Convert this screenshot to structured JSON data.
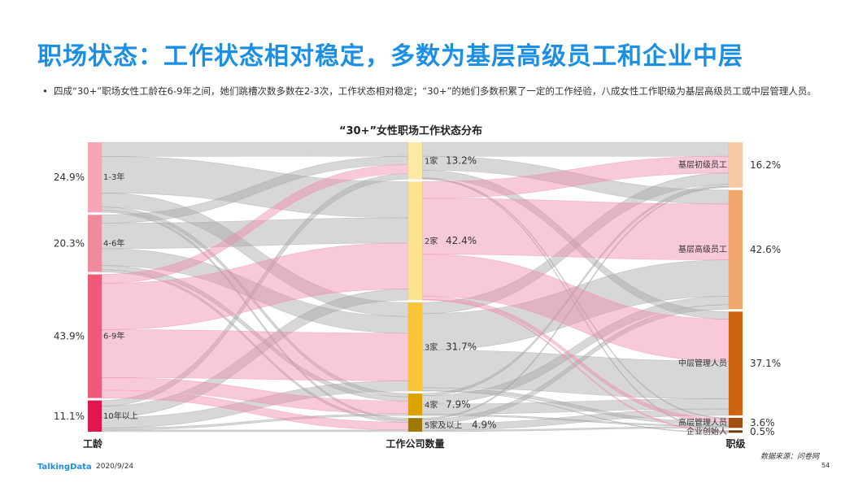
{
  "header": {
    "title": "职场状态：工作状态相对稳定，多数为基层高级员工和企业中层",
    "bullet": "四成“30+”职场女性工龄在6-9年之间，她们跳槽次数多数在2-3次，工作状态相对稳定；“30+”的她们多数积累了一定的工作经验，八成女性工作职级为基层高级员工或中层管理人员。"
  },
  "chart_data": {
    "type": "sankey",
    "title": "“30+”女性职场工作状态分布",
    "columns": [
      {
        "label": "工龄",
        "nodes": [
          {
            "name": "1-3年",
            "pct": "24.9%",
            "value": 24.9,
            "color": "#f4a6b7"
          },
          {
            "name": "4-6年",
            "pct": "20.3%",
            "value": 20.3,
            "color": "#ef8b9d"
          },
          {
            "name": "6-9年",
            "pct": "43.9%",
            "value": 43.9,
            "color": "#ee5a78"
          },
          {
            "name": "10年以上",
            "pct": "11.1%",
            "value": 11.1,
            "color": "#e0174f"
          }
        ]
      },
      {
        "label": "工作公司数量",
        "nodes": [
          {
            "name": "1家",
            "pct": "13.2%",
            "value": 13.2,
            "color": "#fde9a6"
          },
          {
            "name": "2家",
            "pct": "42.4%",
            "value": 42.4,
            "color": "#fde28e"
          },
          {
            "name": "3家",
            "pct": "31.7%",
            "value": 31.7,
            "color": "#f9c437"
          },
          {
            "name": "4家",
            "pct": "7.9%",
            "value": 7.9,
            "color": "#dca200"
          },
          {
            "name": "5家及以上",
            "pct": "4.9%",
            "value": 4.9,
            "color": "#a07a06"
          }
        ]
      },
      {
        "label": "职级",
        "nodes": [
          {
            "name": "基层初级员工",
            "pct": "16.2%",
            "value": 16.2,
            "color": "#f9c9a4"
          },
          {
            "name": "基层高级员工",
            "pct": "42.6%",
            "value": 42.6,
            "color": "#f1a66c"
          },
          {
            "name": "中层管理人员",
            "pct": "37.1%",
            "value": 37.1,
            "color": "#cf6410"
          },
          {
            "name": "高层管理人员",
            "pct": "3.6%",
            "value": 3.6,
            "color": "#a05014"
          },
          {
            "name": "企业创始人",
            "pct": "0.5%",
            "value": 0.5,
            "color": "#6b3a12"
          }
        ]
      }
    ],
    "links_left": [
      {
        "from": 0,
        "to": 0,
        "value": 5.0,
        "highlight": false
      },
      {
        "from": 0,
        "to": 1,
        "value": 13.0,
        "highlight": false
      },
      {
        "from": 0,
        "to": 2,
        "value": 5.0,
        "highlight": false
      },
      {
        "from": 0,
        "to": 3,
        "value": 1.2,
        "highlight": false
      },
      {
        "from": 0,
        "to": 4,
        "value": 0.7,
        "highlight": false
      },
      {
        "from": 1,
        "to": 0,
        "value": 3.0,
        "highlight": false
      },
      {
        "from": 1,
        "to": 1,
        "value": 9.0,
        "highlight": false
      },
      {
        "from": 1,
        "to": 2,
        "value": 6.0,
        "highlight": false
      },
      {
        "from": 1,
        "to": 3,
        "value": 1.5,
        "highlight": false
      },
      {
        "from": 1,
        "to": 4,
        "value": 0.8,
        "highlight": false
      },
      {
        "from": 2,
        "to": 0,
        "value": 3.2,
        "highlight": true
      },
      {
        "from": 2,
        "to": 1,
        "value": 16.4,
        "highlight": true
      },
      {
        "from": 2,
        "to": 2,
        "value": 17.0,
        "highlight": true
      },
      {
        "from": 2,
        "to": 3,
        "value": 4.5,
        "highlight": true
      },
      {
        "from": 2,
        "to": 4,
        "value": 2.8,
        "highlight": true
      },
      {
        "from": 3,
        "to": 0,
        "value": 2.0,
        "highlight": false
      },
      {
        "from": 3,
        "to": 1,
        "value": 4.0,
        "highlight": false
      },
      {
        "from": 3,
        "to": 2,
        "value": 3.7,
        "highlight": false
      },
      {
        "from": 3,
        "to": 3,
        "value": 0.7,
        "highlight": false
      },
      {
        "from": 3,
        "to": 4,
        "value": 0.6,
        "highlight": false
      }
    ],
    "links_right": [
      {
        "from": 0,
        "to": 0,
        "value": 5.0,
        "highlight": false
      },
      {
        "from": 0,
        "to": 1,
        "value": 5.0,
        "highlight": false
      },
      {
        "from": 0,
        "to": 2,
        "value": 2.7,
        "highlight": false
      },
      {
        "from": 0,
        "to": 3,
        "value": 0.3,
        "highlight": false
      },
      {
        "from": 0,
        "to": 4,
        "value": 0.2,
        "highlight": false
      },
      {
        "from": 1,
        "to": 0,
        "value": 6.0,
        "highlight": true
      },
      {
        "from": 1,
        "to": 1,
        "value": 20.0,
        "highlight": true
      },
      {
        "from": 1,
        "to": 2,
        "value": 15.0,
        "highlight": true
      },
      {
        "from": 1,
        "to": 3,
        "value": 1.2,
        "highlight": true
      },
      {
        "from": 1,
        "to": 4,
        "value": 0.2,
        "highlight": true
      },
      {
        "from": 2,
        "to": 0,
        "value": 4.0,
        "highlight": false
      },
      {
        "from": 2,
        "to": 1,
        "value": 13.0,
        "highlight": false
      },
      {
        "from": 2,
        "to": 2,
        "value": 13.5,
        "highlight": false
      },
      {
        "from": 2,
        "to": 3,
        "value": 1.1,
        "highlight": false
      },
      {
        "from": 2,
        "to": 4,
        "value": 0.1,
        "highlight": false
      },
      {
        "from": 3,
        "to": 0,
        "value": 0.8,
        "highlight": false
      },
      {
        "from": 3,
        "to": 1,
        "value": 3.0,
        "highlight": false
      },
      {
        "from": 3,
        "to": 2,
        "value": 3.6,
        "highlight": false
      },
      {
        "from": 3,
        "to": 3,
        "value": 0.5,
        "highlight": false
      },
      {
        "from": 4,
        "to": 0,
        "value": 0.4,
        "highlight": false
      },
      {
        "from": 4,
        "to": 1,
        "value": 1.6,
        "highlight": false
      },
      {
        "from": 4,
        "to": 2,
        "value": 2.3,
        "highlight": false
      },
      {
        "from": 4,
        "to": 3,
        "value": 0.5,
        "highlight": false
      }
    ],
    "link_colors": {
      "highlight": "#f08aaa",
      "normal": "#a6a6a6"
    }
  },
  "footer": {
    "logo": "TalkingData",
    "date": "2020/9/24",
    "source": "数据来源：问卷网",
    "page": "54"
  }
}
